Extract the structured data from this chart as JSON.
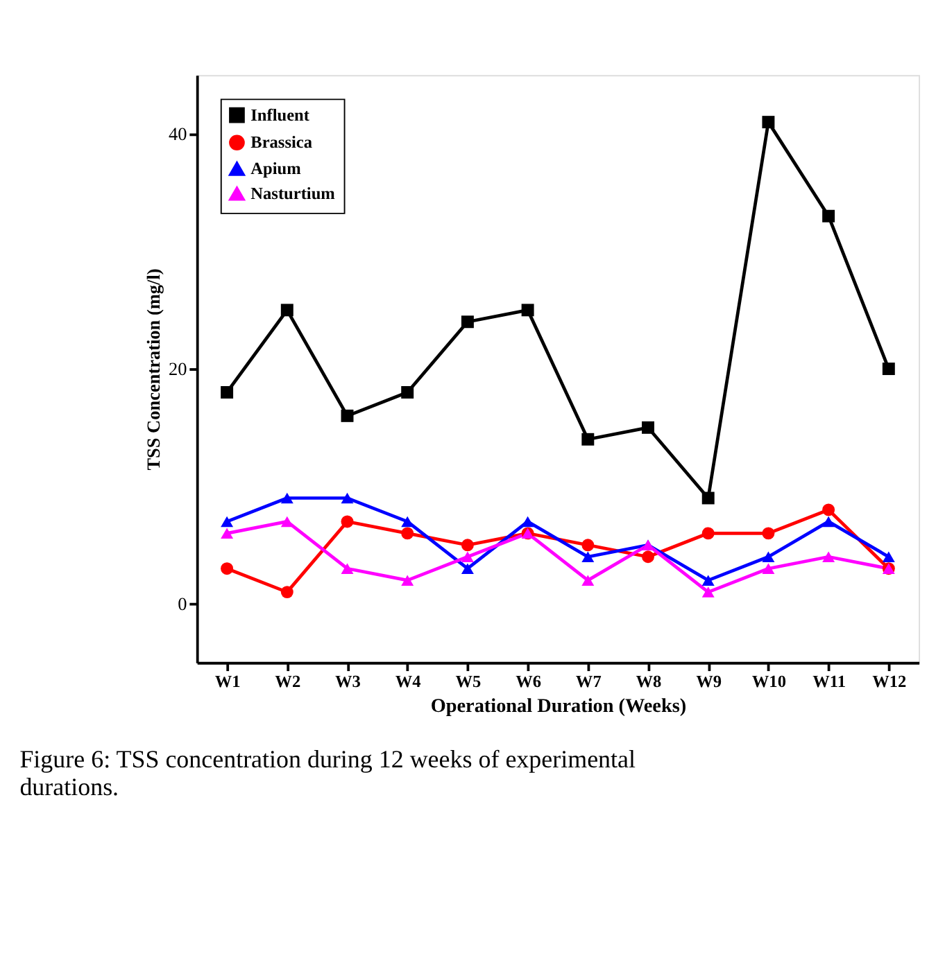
{
  "chart_data": {
    "type": "line",
    "xlabel": "Operational Duration (Weeks)",
    "ylabel": "TSS Concentration (mg/l)",
    "categories": [
      "W1",
      "W2",
      "W3",
      "W4",
      "W5",
      "W6",
      "W7",
      "W8",
      "W9",
      "W10",
      "W11",
      "W12"
    ],
    "series": [
      {
        "name": "Influent",
        "color": "#000000",
        "marker": "square",
        "values": [
          18,
          25,
          16,
          18,
          24,
          25,
          14,
          15,
          9,
          41,
          33,
          20
        ]
      },
      {
        "name": "Brassica",
        "color": "#ff0000",
        "marker": "circle",
        "values": [
          3,
          1,
          7,
          6,
          5,
          6,
          5,
          4,
          6,
          6,
          8,
          3
        ]
      },
      {
        "name": "Apium",
        "color": "#0000ff",
        "marker": "triangle",
        "values": [
          7,
          9,
          9,
          7,
          3,
          7,
          4,
          5,
          2,
          4,
          7,
          4
        ]
      },
      {
        "name": "Nasturtium",
        "color": "#ff00ff",
        "marker": "triangle",
        "values": [
          6,
          7,
          3,
          2,
          4,
          6,
          2,
          5,
          1,
          3,
          4,
          3
        ]
      }
    ],
    "ylim": [
      -5,
      45
    ],
    "yticks": [
      0,
      20,
      40
    ],
    "grid": false,
    "legend": "top left",
    "line_style": "solid",
    "annotations": [
      "Figure 6: TSS concentration during 12 weeks of experimental durations."
    ]
  }
}
